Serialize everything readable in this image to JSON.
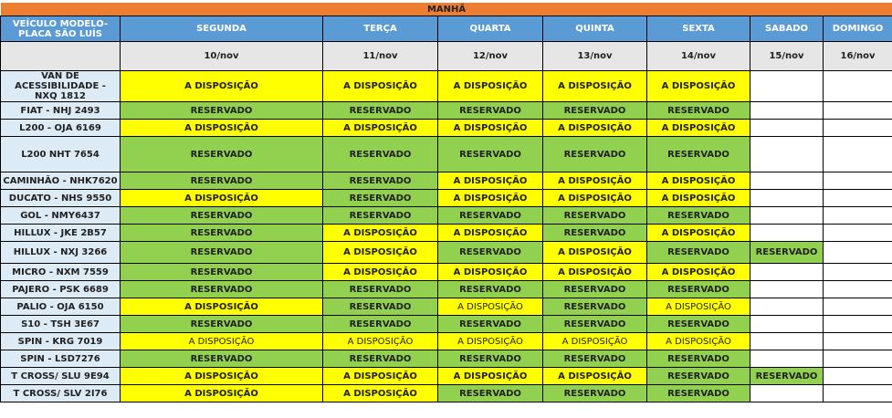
{
  "title": "MANHÃ",
  "vehicle_header": "VEÍCULO MODELO-PLACA  SÃO LUÍS",
  "days": [
    "SEGUNDA",
    "TERÇA",
    "QUARTA",
    "QUINTA",
    "SEXTA",
    "SABADO",
    "DOMINGO"
  ],
  "dates": [
    "10/nov",
    "11/nov",
    "12/nov",
    "13/nov",
    "14/nov",
    "15/nov",
    "16/nov"
  ],
  "colors": {
    "title": "#ed7d31",
    "header": "#5b9bd5",
    "available": "#ffff00",
    "reserved": "#92d050"
  },
  "rows": [
    {
      "vehicle": "VAN  DE ACESSIBILIDADE - NXQ 1812",
      "cells": [
        "A DISPOSIÇÃO",
        "A DISPOSIÇÃO",
        "A DISPOSIÇÃO",
        "A DISPOSIÇÃO",
        "A DISPOSIÇÃO",
        "",
        ""
      ]
    },
    {
      "vehicle": "FIAT - NHJ 2493",
      "cells": [
        "RESERVADO",
        "RESERVADO",
        "RESERVADO",
        "RESERVADO",
        "RESERVADO",
        "",
        ""
      ]
    },
    {
      "vehicle": "L200 - OJA 6169",
      "cells": [
        "A DISPOSIÇÃO",
        "A DISPOSIÇÃO",
        "A DISPOSIÇÃO",
        "A DISPOSIÇÃO",
        "A DISPOSIÇÃO",
        "",
        ""
      ]
    },
    {
      "vehicle": "L200 NHT 7654",
      "cells": [
        "RESERVADO",
        "RESERVADO",
        "RESERVADO",
        "RESERVADO",
        "RESERVADO",
        "",
        ""
      ]
    },
    {
      "vehicle": "CAMINHÃO - NHK7620",
      "cells": [
        "RESERVADO",
        "RESERVADO",
        "A DISPOSIÇÃO",
        "A DISPOSIÇÃO",
        "A DISPOSIÇÃO",
        "",
        ""
      ]
    },
    {
      "vehicle": "DUCATO - NHS 9550",
      "cells": [
        "A DISPOSIÇÃO",
        "RESERVADO",
        "A DISPOSIÇÃO",
        "A DISPOSIÇÃO",
        "A DISPOSIÇÃO",
        "",
        ""
      ]
    },
    {
      "vehicle": "GOL - NMY6437",
      "cells": [
        "RESERVADO",
        "RESERVADO",
        "RESERVADO",
        "RESERVADO",
        "RESERVADO",
        "",
        ""
      ]
    },
    {
      "vehicle": "HILLUX  - JKE 2B57",
      "cells": [
        "RESERVADO",
        "A DISPOSIÇÃO",
        "A DISPOSIÇÃO",
        "RESERVADO",
        "A DISPOSIÇÃO",
        "",
        ""
      ]
    },
    {
      "vehicle": "HILLUX - NXJ 3266",
      "cells": [
        "RESERVADO",
        "A DISPOSIÇÃO",
        "RESERVADO",
        "A DISPOSIÇÃO",
        "RESERVADO",
        "RESERVADO",
        ""
      ]
    },
    {
      "vehicle": "MICRO - NXM 7559",
      "cells": [
        "RESERVADO",
        "A DISPOSIÇÃO",
        "A DISPOSIÇÃO",
        "A DISPOSIÇÃO",
        "A DISPOSIÇÃO",
        "",
        ""
      ]
    },
    {
      "vehicle": "PAJERO - PSK 6689",
      "cells": [
        "RESERVADO",
        "RESERVADO",
        "RESERVADO",
        "RESERVADO",
        "RESERVADO",
        "",
        ""
      ]
    },
    {
      "vehicle": "PALIO - OJA 6150",
      "cells": [
        "A DISPOSIÇÃO",
        "RESERVADO",
        "A DISPOSIÇÃO",
        "RESERVADO",
        "A DISPOSIÇÃO",
        "",
        ""
      ],
      "light": [
        2,
        4
      ]
    },
    {
      "vehicle": "S10 - TSH 3E67",
      "cells": [
        "RESERVADO",
        "RESERVADO",
        "RESERVADO",
        "RESERVADO",
        "RESERVADO",
        "",
        ""
      ]
    },
    {
      "vehicle": "SPIN - KRG 7019",
      "cells": [
        "A DISPOSIÇÃO",
        "A DISPOSIÇÃO",
        "A DISPOSIÇÃO",
        "A DISPOSIÇÃO",
        "A DISPOSIÇÃO",
        "",
        ""
      ],
      "light": [
        0,
        1,
        2,
        3,
        4
      ]
    },
    {
      "vehicle": "SPIN - LSD7276",
      "cells": [
        "RESERVADO",
        "RESERVADO",
        "RESERVADO",
        "RESERVADO",
        "RESERVADO",
        "",
        ""
      ]
    },
    {
      "vehicle": "T CROSS/ SLU 9E94",
      "cells": [
        "A DISPOSIÇÃO",
        "A DISPOSIÇÃO",
        "A DISPOSIÇÃO",
        "A DISPOSIÇÃO",
        "RESERVADO",
        "RESERVADO",
        ""
      ]
    },
    {
      "vehicle": "T CROSS/ SLV 2I76",
      "cells": [
        "A DISPOSIÇÃO",
        "A DISPOSIÇÃO",
        "RESERVADO",
        "RESERVADO",
        "RESERVADO",
        "",
        ""
      ]
    }
  ]
}
